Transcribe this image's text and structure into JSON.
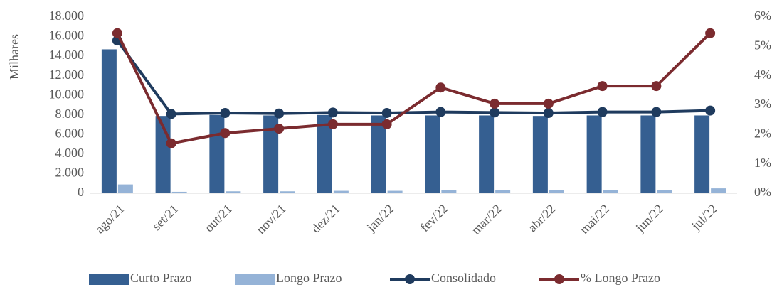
{
  "chart_data": {
    "type": "bar_line",
    "ylabel": "Milhares",
    "categories": [
      "ago/21",
      "set/21",
      "out/21",
      "nov/21",
      "dez/21",
      "jan/22",
      "fev/22",
      "mar/22",
      "abr/22",
      "mai/22",
      "jun/22",
      "jul/22"
    ],
    "series": [
      {
        "name": "Curto Prazo",
        "type": "bar",
        "color": "#355f91",
        "values": [
          14700,
          7900,
          8000,
          7950,
          8000,
          7950,
          7950,
          7950,
          7900,
          7950,
          7950,
          7950
        ]
      },
      {
        "name": "Longo Prazo",
        "type": "bar",
        "color": "#95b3d7",
        "values": [
          900,
          150,
          200,
          200,
          250,
          250,
          350,
          300,
          300,
          350,
          350,
          500
        ]
      },
      {
        "name": "Consolidado",
        "type": "line",
        "color": "#1f3b5e",
        "values": [
          15600,
          8100,
          8200,
          8150,
          8250,
          8200,
          8300,
          8250,
          8200,
          8300,
          8300,
          8450
        ]
      },
      {
        "name": "% Longo Prazo",
        "type": "line",
        "axis": "y2",
        "color": "#7b2b2f",
        "values": [
          5.45,
          1.7,
          2.05,
          2.2,
          2.35,
          2.35,
          3.6,
          3.05,
          3.05,
          3.65,
          3.65,
          5.45
        ]
      }
    ],
    "ylim": [
      0,
      18000
    ],
    "yticks": [
      0,
      {
        "value": 2000,
        "label": "2.000"
      },
      {
        "value": 4000,
        "label": "4.000"
      },
      {
        "value": 6000,
        "label": "6.000"
      },
      {
        "value": 8000,
        "label": "8.000"
      },
      {
        "value": 10000,
        "label": "10.000"
      },
      {
        "value": 12000,
        "label": "12.000"
      },
      {
        "value": 14000,
        "label": "14.000"
      },
      {
        "value": 16000,
        "label": "16.000"
      },
      {
        "value": 18000,
        "label": "18.000"
      }
    ],
    "y2lim": [
      0,
      6
    ],
    "y2ticks": [
      {
        "value": 0,
        "label": "0%"
      },
      {
        "value": 1,
        "label": "1%"
      },
      {
        "value": 2,
        "label": "2%"
      },
      {
        "value": 3,
        "label": "3%"
      },
      {
        "value": 4,
        "label": "4%"
      },
      {
        "value": 5,
        "label": "5%"
      },
      {
        "value": 6,
        "label": "6%"
      }
    ],
    "legend": "bottom"
  }
}
